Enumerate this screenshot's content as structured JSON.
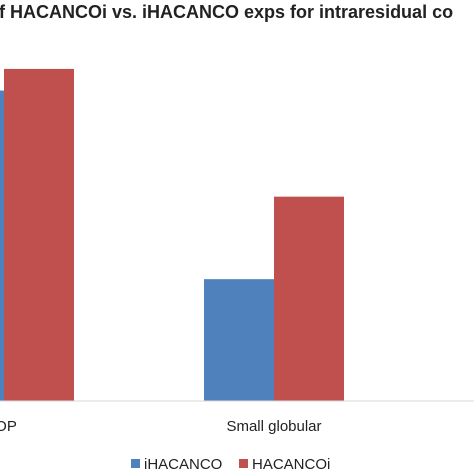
{
  "chart_data": {
    "type": "bar",
    "title": "of HACANCOi vs. iHACANCO exps for intraresidual co",
    "categories": [
      "OP",
      "Small globular"
    ],
    "series": [
      {
        "name": "iHACANCO",
        "color": "#4f81bd",
        "values": [
          790,
          310
        ]
      },
      {
        "name": "HACANCOi",
        "color": "#c0504d",
        "values": [
          845,
          520
        ]
      }
    ],
    "xlabel": "",
    "ylabel": "",
    "ylim": [
      0,
      1000
    ],
    "grid": false,
    "legend": "bottom"
  }
}
